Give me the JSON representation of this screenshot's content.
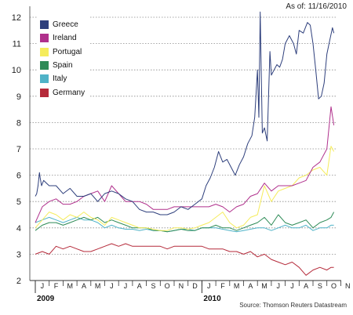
{
  "header": {
    "as_of": "As of: 11/16/2010"
  },
  "footer": {
    "source": "Source: Thomson Reuters Datastream"
  },
  "chart_data": {
    "type": "line",
    "title": "",
    "xlabel": "",
    "ylabel": "",
    "ylim": [
      2,
      12
    ],
    "yticks": [
      "2",
      "3",
      "4",
      "5",
      "6",
      "7",
      "8",
      "9",
      "10",
      "11",
      "12"
    ],
    "grid": "horizontal-dotted",
    "legend_placement": "top-left",
    "month_labels": [
      "J",
      "F",
      "M",
      "A",
      "M",
      "J",
      "J",
      "A",
      "S",
      "O",
      "N",
      "D",
      "J",
      "F",
      "M",
      "A",
      "M",
      "J",
      "J",
      "A",
      "S",
      "O",
      "N"
    ],
    "year_labels": [
      "2009",
      "2010"
    ],
    "series": [
      {
        "name": "Greece",
        "color": "#2e3f7c",
        "x": [
          0,
          0.1,
          0.2,
          0.3,
          0.35,
          0.45,
          0.6,
          0.8,
          1.0,
          1.5,
          2.0,
          2.5,
          3.0,
          3.5,
          4.0,
          4.5,
          5.0,
          5.5,
          6.0,
          6.5,
          7.0,
          7.5,
          8.0,
          8.5,
          9.0,
          9.5,
          10.0,
          10.5,
          11.0,
          11.5,
          12.0,
          12.3,
          12.6,
          12.9,
          13.2,
          13.5,
          13.8,
          14.1,
          14.4,
          14.7,
          15.0,
          15.3,
          15.6,
          15.8,
          16.0,
          16.1,
          16.2,
          16.35,
          16.5,
          16.7,
          16.9,
          17.0,
          17.2,
          17.4,
          17.6,
          17.8,
          18.0,
          18.3,
          18.6,
          18.8,
          19.0,
          19.3,
          19.6,
          19.8,
          20.0,
          20.2,
          20.4,
          20.6,
          20.8,
          21.0,
          21.2,
          21.4,
          21.5
        ],
        "y": [
          5.2,
          5.3,
          5.6,
          6.1,
          5.9,
          5.6,
          5.8,
          5.7,
          5.6,
          5.6,
          5.3,
          5.5,
          5.2,
          5.2,
          5.3,
          5.0,
          5.3,
          5.4,
          5.3,
          5.1,
          5.0,
          4.7,
          4.6,
          4.6,
          4.5,
          4.5,
          4.6,
          4.8,
          4.7,
          4.9,
          5.1,
          5.6,
          5.9,
          6.3,
          6.9,
          6.5,
          6.6,
          6.3,
          6.0,
          6.4,
          6.7,
          7.2,
          7.5,
          8.2,
          10.0,
          8.2,
          12.2,
          7.6,
          7.8,
          7.3,
          10.7,
          9.8,
          10.0,
          10.2,
          10.1,
          10.4,
          11.0,
          11.3,
          11.0,
          10.6,
          11.5,
          11.4,
          11.8,
          11.7,
          11.0,
          10.0,
          8.9,
          9.0,
          9.5,
          10.6,
          11.1,
          11.6,
          11.4
        ]
      },
      {
        "name": "Ireland",
        "color": "#b0308c",
        "x": [
          0,
          0.5,
          1.0,
          1.5,
          2.0,
          2.5,
          3.0,
          3.5,
          4.0,
          4.5,
          5.0,
          5.5,
          6.0,
          6.5,
          7.0,
          7.5,
          8.0,
          8.5,
          9.0,
          9.5,
          10.0,
          10.5,
          11.0,
          11.5,
          12.0,
          12.5,
          13.0,
          13.5,
          14.0,
          14.5,
          15.0,
          15.5,
          16.0,
          16.5,
          17.0,
          17.5,
          18.0,
          18.5,
          19.0,
          19.5,
          20.0,
          20.5,
          21.0,
          21.3,
          21.5
        ],
        "y": [
          4.2,
          4.8,
          5.0,
          5.1,
          4.9,
          4.9,
          5.0,
          5.2,
          5.3,
          5.4,
          5.0,
          5.6,
          5.3,
          5.0,
          5.0,
          5.0,
          4.9,
          4.7,
          4.7,
          4.7,
          4.8,
          4.8,
          4.8,
          4.8,
          4.8,
          4.8,
          4.9,
          4.8,
          4.6,
          4.8,
          4.9,
          5.2,
          5.3,
          5.7,
          5.4,
          5.6,
          5.6,
          5.6,
          5.7,
          5.8,
          6.3,
          6.5,
          7.0,
          8.6,
          7.9
        ]
      },
      {
        "name": "Portugal",
        "color": "#f5ec5c",
        "x": [
          0,
          0.5,
          1.0,
          1.5,
          2.0,
          2.5,
          3.0,
          3.5,
          4.0,
          4.5,
          5.0,
          5.5,
          6.0,
          6.5,
          7.0,
          7.5,
          8.0,
          8.5,
          9.0,
          9.5,
          10.0,
          10.5,
          11.0,
          11.5,
          12.0,
          12.5,
          13.0,
          13.5,
          14.0,
          14.5,
          15.0,
          15.5,
          16.0,
          16.5,
          17.0,
          17.5,
          18.0,
          18.5,
          19.0,
          19.5,
          20.0,
          20.5,
          21.0,
          21.3,
          21.5
        ],
        "y": [
          4.0,
          4.3,
          4.6,
          4.5,
          4.3,
          4.5,
          4.4,
          4.6,
          4.4,
          4.3,
          4.1,
          4.4,
          4.3,
          4.2,
          4.1,
          4.0,
          4.0,
          3.95,
          3.9,
          3.9,
          4.0,
          4.0,
          3.95,
          4.0,
          4.1,
          4.2,
          4.4,
          4.6,
          4.2,
          4.0,
          4.1,
          4.4,
          4.5,
          5.6,
          5.0,
          5.4,
          5.5,
          5.6,
          5.9,
          6.0,
          6.2,
          6.3,
          6.0,
          7.1,
          6.9
        ]
      },
      {
        "name": "Spain",
        "color": "#2e8b57",
        "x": [
          0,
          0.5,
          1.0,
          1.5,
          2.0,
          2.5,
          3.0,
          3.5,
          4.0,
          4.5,
          5.0,
          5.5,
          6.0,
          6.5,
          7.0,
          7.5,
          8.0,
          8.5,
          9.0,
          9.5,
          10.0,
          10.5,
          11.0,
          11.5,
          12.0,
          12.5,
          13.0,
          13.5,
          14.0,
          14.5,
          15.0,
          15.5,
          16.0,
          16.5,
          17.0,
          17.5,
          18.0,
          18.5,
          19.0,
          19.5,
          20.0,
          20.5,
          21.0,
          21.3,
          21.5
        ],
        "y": [
          3.9,
          4.1,
          4.2,
          4.2,
          4.1,
          4.2,
          4.3,
          4.4,
          4.3,
          4.4,
          4.2,
          4.3,
          4.2,
          4.1,
          4.0,
          4.0,
          4.0,
          3.9,
          3.9,
          3.85,
          3.9,
          3.95,
          3.9,
          3.9,
          4.0,
          4.0,
          4.1,
          4.0,
          4.0,
          3.9,
          4.0,
          4.1,
          4.2,
          4.4,
          4.1,
          4.5,
          4.2,
          4.1,
          4.2,
          4.3,
          4.0,
          4.2,
          4.3,
          4.4,
          4.6
        ]
      },
      {
        "name": "Italy",
        "color": "#4fb3c8",
        "x": [
          0,
          0.5,
          1.0,
          1.5,
          2.0,
          2.5,
          3.0,
          3.5,
          4.0,
          4.5,
          5.0,
          5.5,
          6.0,
          6.5,
          7.0,
          7.5,
          8.0,
          8.5,
          9.0,
          9.5,
          10.0,
          10.5,
          11.0,
          11.5,
          12.0,
          12.5,
          13.0,
          13.5,
          14.0,
          14.5,
          15.0,
          15.5,
          16.0,
          16.5,
          17.0,
          17.5,
          18.0,
          18.5,
          19.0,
          19.5,
          20.0,
          20.5,
          21.0,
          21.3,
          21.5
        ],
        "y": [
          4.2,
          4.3,
          4.4,
          4.3,
          4.2,
          4.3,
          4.4,
          4.3,
          4.3,
          4.2,
          4.0,
          4.1,
          4.0,
          3.95,
          3.95,
          3.9,
          3.95,
          3.9,
          3.9,
          3.85,
          3.9,
          3.95,
          3.95,
          3.9,
          4.0,
          4.0,
          4.0,
          3.95,
          3.9,
          3.85,
          3.9,
          3.95,
          4.0,
          4.0,
          3.9,
          4.0,
          4.1,
          4.0,
          4.0,
          4.1,
          3.9,
          4.0,
          4.0,
          4.1,
          4.1
        ]
      },
      {
        "name": "Germany",
        "color": "#b52a3a",
        "x": [
          0,
          0.5,
          1.0,
          1.5,
          2.0,
          2.5,
          3.0,
          3.5,
          4.0,
          4.5,
          5.0,
          5.5,
          6.0,
          6.5,
          7.0,
          7.5,
          8.0,
          8.5,
          9.0,
          9.5,
          10.0,
          10.5,
          11.0,
          11.5,
          12.0,
          12.5,
          13.0,
          13.5,
          14.0,
          14.5,
          15.0,
          15.5,
          16.0,
          16.5,
          17.0,
          17.5,
          18.0,
          18.5,
          19.0,
          19.5,
          20.0,
          20.5,
          21.0,
          21.3,
          21.5
        ],
        "y": [
          3.0,
          3.1,
          3.0,
          3.3,
          3.2,
          3.3,
          3.2,
          3.1,
          3.1,
          3.2,
          3.3,
          3.4,
          3.3,
          3.4,
          3.3,
          3.3,
          3.3,
          3.3,
          3.3,
          3.2,
          3.3,
          3.3,
          3.3,
          3.3,
          3.3,
          3.2,
          3.2,
          3.2,
          3.1,
          3.1,
          3.0,
          3.1,
          2.9,
          3.0,
          2.8,
          2.7,
          2.6,
          2.7,
          2.5,
          2.2,
          2.4,
          2.5,
          2.4,
          2.5,
          2.5
        ]
      }
    ]
  }
}
